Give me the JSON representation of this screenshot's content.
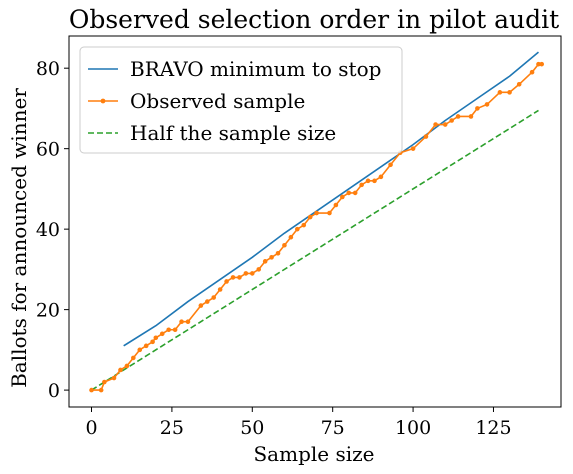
{
  "chart_data": {
    "type": "line",
    "title": "Observed selection order in pilot audit",
    "xlabel": "Sample size",
    "ylabel": "Ballots for announced winner",
    "xlim": [
      -7,
      146
    ],
    "ylim": [
      -4.2,
      88
    ],
    "xticks": [
      0,
      25,
      50,
      75,
      100,
      125
    ],
    "yticks": [
      0,
      20,
      40,
      60,
      80
    ],
    "grid": false,
    "legend_placement": "upper-left",
    "series": [
      {
        "name": "BRAVO minimum to stop",
        "color": "#1f77b4",
        "style": "solid",
        "points": [
          [
            10,
            11
          ],
          [
            20,
            16
          ],
          [
            30,
            22
          ],
          [
            40,
            27.5
          ],
          [
            50,
            33
          ],
          [
            60,
            39
          ],
          [
            70,
            44.5
          ],
          [
            80,
            50
          ],
          [
            90,
            55.5
          ],
          [
            100,
            61
          ],
          [
            110,
            67
          ],
          [
            120,
            72.5
          ],
          [
            130,
            78
          ],
          [
            139,
            84
          ]
        ]
      },
      {
        "name": "Observed sample",
        "color": "#ff7f0e",
        "style": "solid-dot",
        "points": [
          [
            0,
            0
          ],
          [
            3,
            0
          ],
          [
            4,
            2
          ],
          [
            7,
            3
          ],
          [
            9,
            5
          ],
          [
            11,
            6
          ],
          [
            13,
            8
          ],
          [
            15,
            10
          ],
          [
            17,
            11
          ],
          [
            19,
            12
          ],
          [
            20,
            13
          ],
          [
            22,
            14
          ],
          [
            24,
            15
          ],
          [
            26,
            15
          ],
          [
            28,
            17
          ],
          [
            30,
            17
          ],
          [
            34,
            21
          ],
          [
            36,
            22
          ],
          [
            38,
            23
          ],
          [
            40,
            25
          ],
          [
            42,
            27
          ],
          [
            44,
            28
          ],
          [
            46,
            28
          ],
          [
            48,
            29
          ],
          [
            50,
            29
          ],
          [
            52,
            30
          ],
          [
            54,
            32
          ],
          [
            56,
            33
          ],
          [
            58,
            34
          ],
          [
            60,
            36
          ],
          [
            62,
            38
          ],
          [
            64,
            40
          ],
          [
            66,
            41
          ],
          [
            68,
            43
          ],
          [
            70,
            44
          ],
          [
            74,
            44
          ],
          [
            76,
            46
          ],
          [
            78,
            48
          ],
          [
            80,
            49
          ],
          [
            82,
            49
          ],
          [
            84,
            51
          ],
          [
            86,
            52
          ],
          [
            88,
            52
          ],
          [
            90,
            53
          ],
          [
            93,
            56
          ],
          [
            96,
            59
          ],
          [
            100,
            60
          ],
          [
            104,
            63
          ],
          [
            107,
            66
          ],
          [
            110,
            66
          ],
          [
            112,
            67
          ],
          [
            114,
            68
          ],
          [
            118,
            68
          ],
          [
            120,
            70
          ],
          [
            123,
            71
          ],
          [
            127,
            74
          ],
          [
            130,
            74
          ],
          [
            133,
            76
          ],
          [
            137,
            79
          ],
          [
            139,
            81
          ],
          [
            140,
            81
          ]
        ]
      },
      {
        "name": "Half the sample size",
        "color": "#2ca02c",
        "style": "dashed",
        "points": [
          [
            0,
            0
          ],
          [
            139,
            69.5
          ]
        ]
      }
    ]
  }
}
